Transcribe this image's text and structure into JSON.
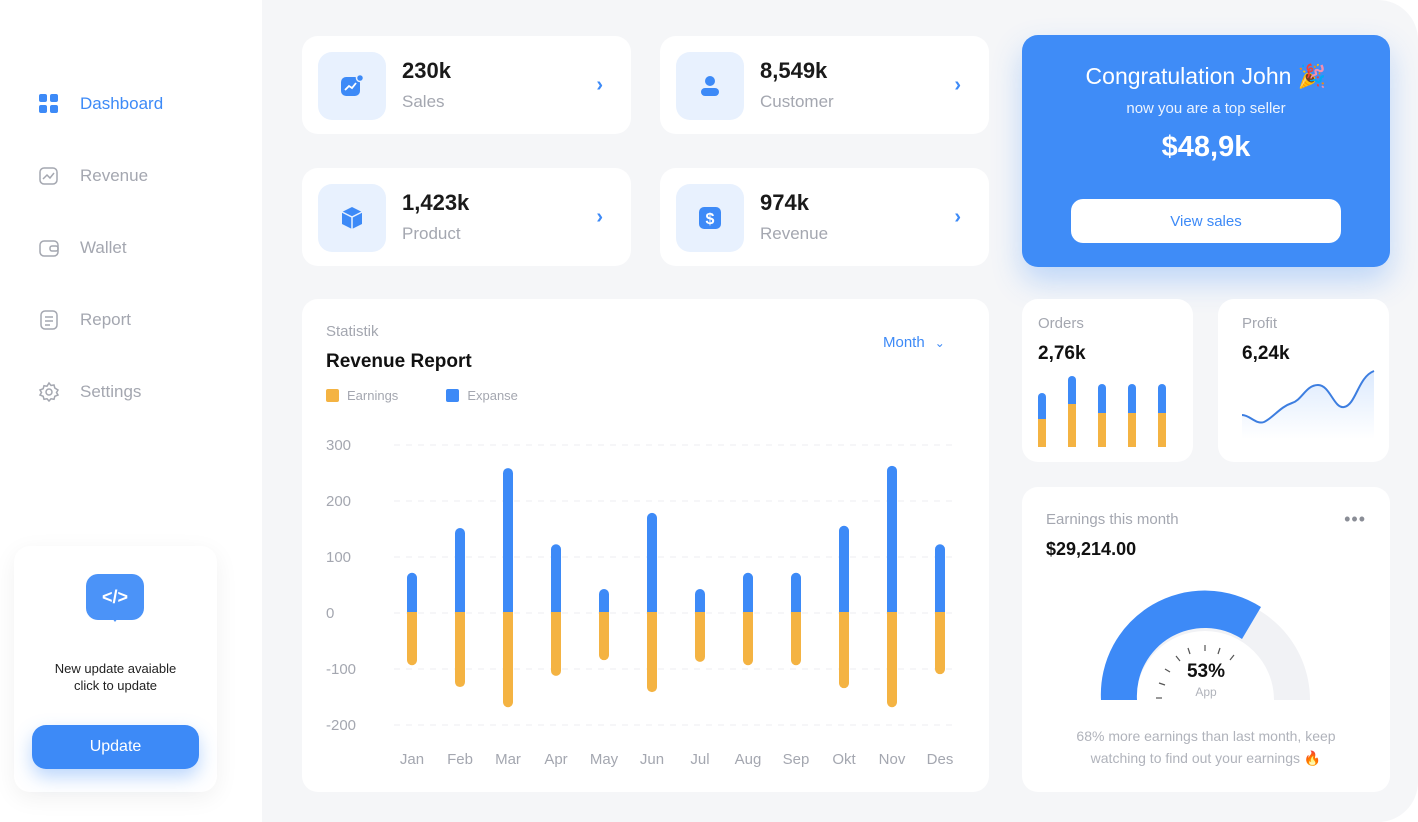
{
  "sidebar": {
    "items": [
      {
        "label": "Dashboard",
        "icon": "grid-icon",
        "active": true
      },
      {
        "label": "Revenue",
        "icon": "chart-icon"
      },
      {
        "label": "Wallet",
        "icon": "wallet-icon"
      },
      {
        "label": "Report",
        "icon": "document-icon"
      },
      {
        "label": "Settings",
        "icon": "gear-icon"
      }
    ],
    "update": {
      "icon": "code-icon",
      "line1": "New update avaiable",
      "line2": "click to update",
      "button": "Update"
    }
  },
  "stats": [
    {
      "value": "230k",
      "label": "Sales",
      "icon": "trend-icon"
    },
    {
      "value": "8,549k",
      "label": "Customer",
      "icon": "user-icon"
    },
    {
      "value": "1,423k",
      "label": "Product",
      "icon": "box-icon"
    },
    {
      "value": "974k",
      "label": "Revenue",
      "icon": "dollar-icon"
    }
  ],
  "promo": {
    "title": "Congratulation John 🎉",
    "subtitle": "now you are a top seller",
    "amount": "$48,9k",
    "button": "View sales"
  },
  "report": {
    "kicker": "Statistik",
    "title": "Revenue Report",
    "period": "Month"
  },
  "chart_data": {
    "type": "bar",
    "categories": [
      "Jan",
      "Feb",
      "Mar",
      "Apr",
      "May",
      "Jun",
      "Jul",
      "Aug",
      "Sep",
      "Okt",
      "Nov",
      "Des"
    ],
    "series": [
      {
        "name": "Earnings",
        "color": "#f4b342",
        "values": [
          -95,
          -134,
          -170,
          -114,
          -86,
          -143,
          -89,
          -95,
          -95,
          -136,
          -170,
          -111
        ]
      },
      {
        "name": "Expanse",
        "color": "#3d8af7",
        "values": [
          70,
          150,
          257,
          121,
          41,
          177,
          41,
          70,
          70,
          154,
          261,
          121
        ]
      }
    ],
    "yticks": [
      "300",
      "200",
      "100",
      "0",
      "-100",
      "-200"
    ],
    "ylim": [
      -200,
      300
    ],
    "grid": true,
    "legend": "top-left"
  },
  "orders": {
    "label": "Orders",
    "value": "2,76k"
  },
  "profit": {
    "label": "Profit",
    "value": "6,24k"
  },
  "earnings": {
    "label": "Earnings this month",
    "value": "$29,214.00",
    "percent": "53%",
    "percent_label": "App",
    "note1": "68% more earnings than last month, keep",
    "note2": "watching to find out your earnings 🔥"
  }
}
